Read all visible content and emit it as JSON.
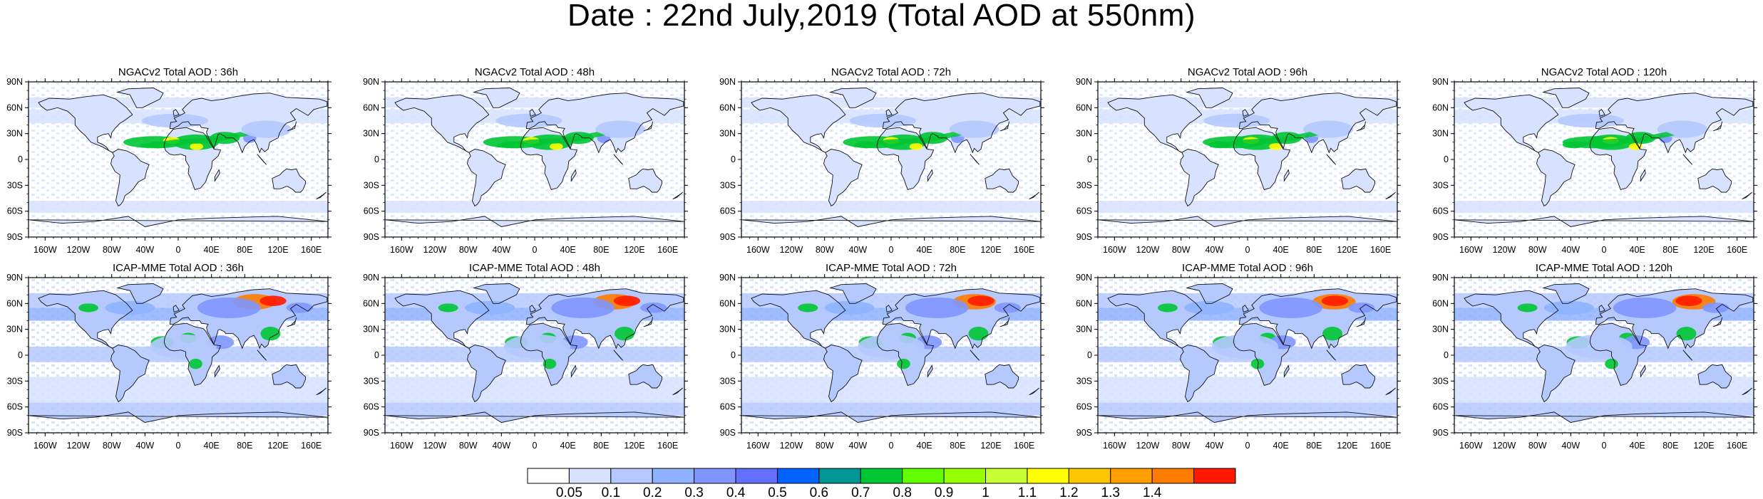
{
  "title": "Date : 22nd July,2019 (Total AOD at 550nm)",
  "rows": [
    {
      "model": "NGACv2",
      "panels": [
        {
          "title": "NGACv2 Total AOD : 36h",
          "forecast_hour": 36
        },
        {
          "title": "NGACv2 Total AOD : 48h",
          "forecast_hour": 48
        },
        {
          "title": "NGACv2 Total AOD : 72h",
          "forecast_hour": 72
        },
        {
          "title": "NGACv2 Total AOD : 96h",
          "forecast_hour": 96
        },
        {
          "title": "NGACv2 Total AOD : 120h",
          "forecast_hour": 120
        }
      ]
    },
    {
      "model": "ICAP-MME",
      "panels": [
        {
          "title": "ICAP-MME Total AOD : 36h",
          "forecast_hour": 36
        },
        {
          "title": "ICAP-MME Total AOD : 48h",
          "forecast_hour": 48
        },
        {
          "title": "ICAP-MME Total AOD : 72h",
          "forecast_hour": 72
        },
        {
          "title": "ICAP-MME Total AOD : 96h",
          "forecast_hour": 96
        },
        {
          "title": "ICAP-MME Total AOD : 120h",
          "forecast_hour": 120
        }
      ]
    }
  ],
  "lat_labels": [
    "90N",
    "60N",
    "30N",
    "0",
    "30S",
    "60S",
    "90S"
  ],
  "lon_labels": [
    "160W",
    "120W",
    "80W",
    "40W",
    "0",
    "40E",
    "80E",
    "120E",
    "160E"
  ],
  "colorbar": {
    "labels": [
      "0.05",
      "0.1",
      "0.2",
      "0.3",
      "0.4",
      "0.5",
      "0.6",
      "0.7",
      "0.8",
      "0.9",
      "1",
      "1.1",
      "1.2",
      "1.3",
      "1.4"
    ],
    "colors": [
      "#ffffff",
      "#d6e2ff",
      "#b5c9ff",
      "#8eb2ff",
      "#7f96ff",
      "#6370ff",
      "#0063ff",
      "#009696",
      "#00c633",
      "#63ff00",
      "#96ff00",
      "#c6ff33",
      "#ffff00",
      "#ffc600",
      "#ffa000",
      "#ff7c00",
      "#ff1900"
    ]
  },
  "map_fill": {
    "ocean": "#ffffff",
    "land_low": "#d6e2ff",
    "aod_low": "#b5c9ff",
    "aod_moderate": "#8eb2ff",
    "aod_elevated": "#7f96ff",
    "aod_high": "#00c633",
    "aod_very_high": "#ff7c00",
    "aod_extreme": "#ff1900",
    "plume_core": "#ffff00"
  }
}
